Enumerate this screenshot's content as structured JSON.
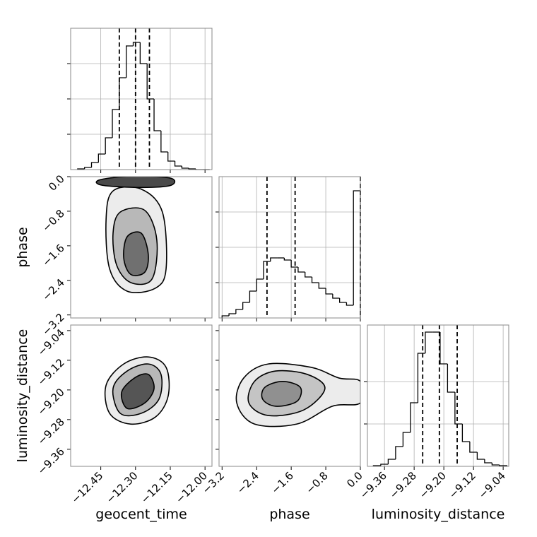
{
  "chart_data": [
    {
      "type": "histogram",
      "xlim": [
        -12.58,
        -11.97
      ],
      "ylim": [
        0,
        200
      ],
      "grid": true,
      "color": "#000000",
      "xticks": [
        {
          "value": -12.45,
          "label": "−12.45"
        },
        {
          "value": -12.3,
          "label": "−12.30"
        },
        {
          "value": -12.15,
          "label": "−12.15"
        },
        {
          "value": -12.0,
          "label": "−12.00"
        }
      ],
      "yticks": [
        50,
        100,
        150
      ],
      "bins": [
        -12.55,
        -12.52,
        -12.49,
        -12.46,
        -12.43,
        -12.4,
        -12.37,
        -12.34,
        -12.31,
        -12.28,
        -12.25,
        -12.22,
        -12.19,
        -12.16,
        -12.13,
        -12.1,
        -12.07,
        -12.04,
        -12.01,
        -11.98
      ],
      "counts": [
        1,
        3,
        10,
        22,
        45,
        85,
        130,
        175,
        180,
        150,
        100,
        55,
        25,
        12,
        5,
        2,
        1,
        0,
        0
      ],
      "quantiles": [
        -12.37,
        -12.3,
        -12.24
      ]
    },
    {
      "type": "contour",
      "xlim": [
        -12.58,
        -11.97
      ],
      "ylim": [
        -3.27,
        0
      ],
      "ylabel": "phase",
      "xticks": [
        {
          "value": -12.45,
          "label": "−12.45"
        },
        {
          "value": -12.3,
          "label": "−12.30"
        },
        {
          "value": -12.15,
          "label": "−12.15"
        },
        {
          "value": -12.0,
          "label": "−12.00"
        }
      ],
      "yticks": [
        {
          "value": 0,
          "label": "0.0"
        },
        {
          "value": -0.8,
          "label": "−0.8"
        },
        {
          "value": -1.6,
          "label": "−1.6"
        },
        {
          "value": -2.4,
          "label": "−2.4"
        },
        {
          "value": -3.2,
          "label": "−3.2"
        }
      ],
      "contours": [
        {
          "fill": "#ececec",
          "x": [
            -12.397,
            -12.275,
            -12.184,
            -12.168,
            -12.214,
            -12.336,
            -12.412,
            -12.427
          ],
          "y": [
            -0.33,
            -0.29,
            -0.82,
            -2.13,
            -2.58,
            -2.65,
            -2.13,
            -0.98
          ]
        },
        {
          "fill": "#b8b8b8",
          "x": [
            -12.366,
            -12.26,
            -12.208,
            -12.229,
            -12.321,
            -12.382,
            -12.397
          ],
          "y": [
            -0.82,
            -0.78,
            -1.47,
            -2.37,
            -2.45,
            -2.04,
            -1.31
          ]
        },
        {
          "fill": "#707070",
          "x": [
            -12.336,
            -12.275,
            -12.245,
            -12.26,
            -12.321,
            -12.351
          ],
          "y": [
            -1.39,
            -1.31,
            -1.8,
            -2.21,
            -2.26,
            -1.88
          ]
        },
        {
          "fill": "#4a4a4a",
          "x": [
            -12.458,
            -12.336,
            -12.153,
            -12.147,
            -12.275,
            -12.443
          ],
          "y": [
            -0.08,
            0,
            -0.03,
            -0.2,
            -0.25,
            -0.2
          ]
        }
      ]
    },
    {
      "type": "histogram",
      "xlim": [
        -3.27,
        0
      ],
      "ylim": [
        0,
        200
      ],
      "grid": true,
      "color": "#000000",
      "xticks": [
        {
          "value": -3.2,
          "label": "−3.2"
        },
        {
          "value": -2.4,
          "label": "−2.4"
        },
        {
          "value": -1.6,
          "label": "−1.6"
        },
        {
          "value": -0.8,
          "label": "−0.8"
        },
        {
          "value": 0,
          "label": "0.0"
        }
      ],
      "yticks": [
        50,
        100,
        150
      ],
      "bins": [
        -3.2,
        -3.04,
        -2.88,
        -2.72,
        -2.56,
        -2.4,
        -2.24,
        -2.08,
        -1.92,
        -1.76,
        -1.6,
        -1.44,
        -1.28,
        -1.12,
        -0.96,
        -0.8,
        -0.64,
        -0.48,
        -0.32,
        -0.16,
        0
      ],
      "counts": [
        3,
        6,
        12,
        22,
        38,
        55,
        80,
        85,
        85,
        82,
        72,
        65,
        58,
        50,
        42,
        34,
        28,
        22,
        18,
        180
      ],
      "quantiles": [
        -2.16,
        -1.51,
        0
      ]
    },
    {
      "type": "contour",
      "xlim": [
        -12.58,
        -11.97
      ],
      "ylim": [
        -9.406,
        -9.025
      ],
      "xlabel": "geocent_time",
      "ylabel": "luminosity_distance",
      "xticks": [
        {
          "value": -12.45,
          "label": "−12.45"
        },
        {
          "value": -12.3,
          "label": "−12.30"
        },
        {
          "value": -12.15,
          "label": "−12.15"
        },
        {
          "value": -12.0,
          "label": "−12.00"
        }
      ],
      "yticks": [
        {
          "value": -9.04,
          "label": "−9.04"
        },
        {
          "value": -9.12,
          "label": "−9.12"
        },
        {
          "value": -9.2,
          "label": "−9.20"
        },
        {
          "value": -9.28,
          "label": "−9.28"
        },
        {
          "value": -9.36,
          "label": "−9.36"
        }
      ],
      "contours": [
        {
          "fill": "#ececec",
          "x": [
            -12.427,
            -12.351,
            -12.245,
            -12.168,
            -12.159,
            -12.214,
            -12.321,
            -12.412
          ],
          "y": [
            -9.187,
            -9.13,
            -9.111,
            -9.139,
            -9.216,
            -9.273,
            -9.292,
            -9.263
          ]
        },
        {
          "fill": "#b8b8b8",
          "x": [
            -12.397,
            -12.336,
            -12.245,
            -12.19,
            -12.199,
            -12.275,
            -12.366
          ],
          "y": [
            -9.196,
            -9.149,
            -9.13,
            -9.158,
            -9.225,
            -9.263,
            -9.263
          ]
        },
        {
          "fill": "#555555",
          "x": [
            -12.36,
            -12.305,
            -12.245,
            -12.22,
            -12.26,
            -12.336
          ],
          "y": [
            -9.206,
            -9.168,
            -9.158,
            -9.196,
            -9.235,
            -9.25
          ]
        }
      ]
    },
    {
      "type": "contour",
      "xlim": [
        -3.27,
        0
      ],
      "ylim": [
        -9.406,
        -9.025
      ],
      "xlabel": "phase",
      "xticks": [
        {
          "value": -3.2,
          "label": "−3.2"
        },
        {
          "value": -2.4,
          "label": "−2.4"
        },
        {
          "value": -1.6,
          "label": "−1.6"
        },
        {
          "value": -0.8,
          "label": "−0.8"
        },
        {
          "value": 0,
          "label": "0.0"
        }
      ],
      "yticks": [
        {
          "value": -9.04,
          "label": "−9.04"
        },
        {
          "value": -9.12,
          "label": "−9.12"
        },
        {
          "value": -9.2,
          "label": "−9.20"
        },
        {
          "value": -9.28,
          "label": "−9.28"
        },
        {
          "value": -9.36,
          "label": "−9.36"
        }
      ],
      "contours": [
        {
          "fill": "#ececec",
          "x": [
            -2.7,
            -2.13,
            -1.14,
            -0.49,
            0,
            0,
            -0.65,
            -1.47,
            -2.45,
            -2.86
          ],
          "y": [
            -9.168,
            -9.13,
            -9.139,
            -9.168,
            -9.177,
            -9.235,
            -9.244,
            -9.292,
            -9.292,
            -9.235
          ]
        },
        {
          "fill": "#c4c4c4",
          "x": [
            -2.45,
            -1.96,
            -1.23,
            -0.82,
            -1.31,
            -2.13,
            -2.58
          ],
          "y": [
            -9.177,
            -9.149,
            -9.158,
            -9.196,
            -9.254,
            -9.269,
            -9.235
          ]
        },
        {
          "fill": "#909090",
          "x": [
            -2.21,
            -1.8,
            -1.39,
            -1.47,
            -1.96,
            -2.26
          ],
          "y": [
            -9.193,
            -9.177,
            -9.193,
            -9.231,
            -9.244,
            -9.225
          ]
        }
      ]
    },
    {
      "type": "histogram",
      "xlim": [
        -9.406,
        -9.025
      ],
      "ylim": [
        0,
        200
      ],
      "grid": true,
      "color": "#000000",
      "xlabel": "luminosity_distance",
      "xticks": [
        {
          "value": -9.36,
          "label": "−9.36"
        },
        {
          "value": -9.28,
          "label": "−9.28"
        },
        {
          "value": -9.2,
          "label": "−9.20"
        },
        {
          "value": -9.12,
          "label": "−9.12"
        },
        {
          "value": -9.04,
          "label": "−9.04"
        }
      ],
      "yticks": [
        60,
        120
      ],
      "bins": [
        -9.39,
        -9.37,
        -9.35,
        -9.33,
        -9.31,
        -9.29,
        -9.27,
        -9.25,
        -9.23,
        -9.21,
        -9.19,
        -9.17,
        -9.15,
        -9.13,
        -9.11,
        -9.09,
        -9.07,
        -9.05,
        -9.03
      ],
      "counts": [
        1,
        3,
        10,
        28,
        48,
        90,
        160,
        190,
        190,
        145,
        105,
        60,
        35,
        20,
        10,
        5,
        2,
        1
      ],
      "quantiles": [
        -9.257,
        -9.212,
        -9.164
      ]
    }
  ]
}
